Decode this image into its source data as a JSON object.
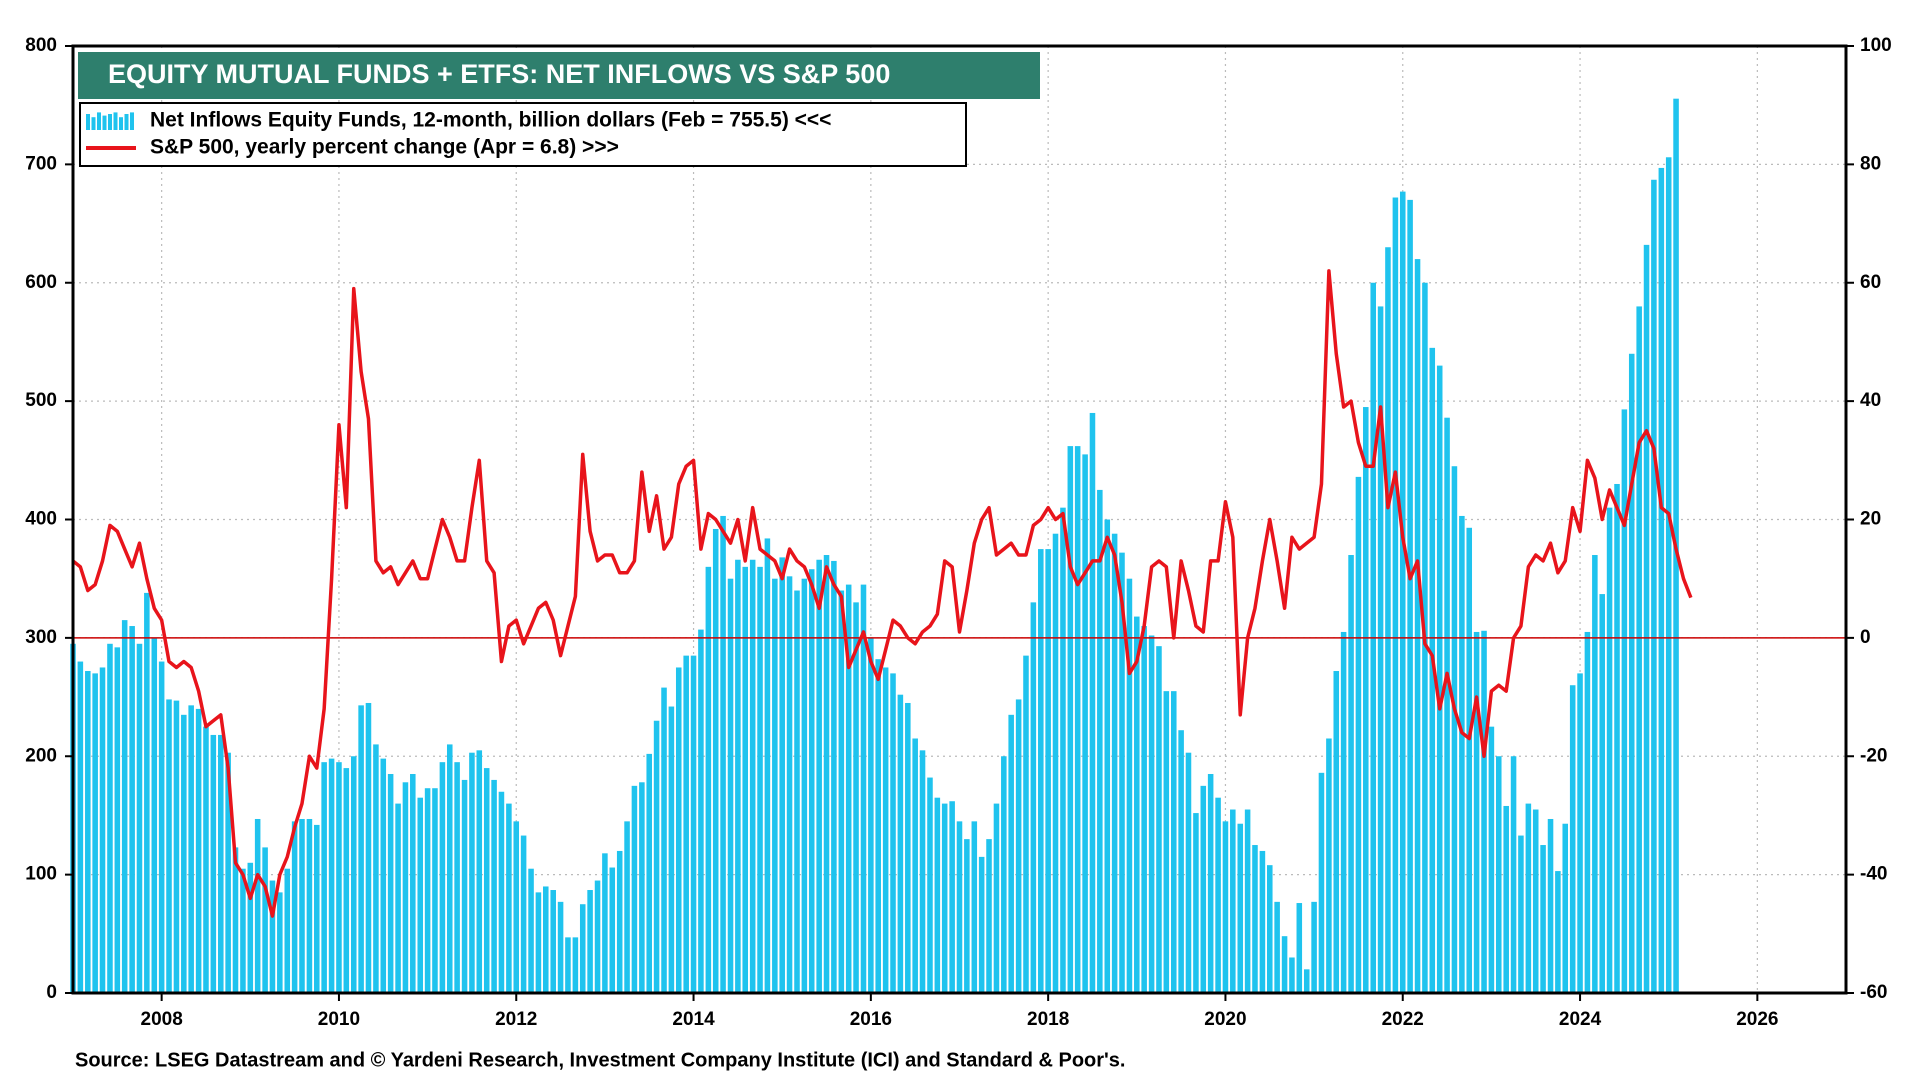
{
  "chart_data": {
    "type": "bar_line",
    "title": "EQUITY MUTUAL FUNDS + ETFS: NET INFLOWS VS S&P 500",
    "source": "Source: LSEG Datastream and © Yardeni Research, Investment Company Institute (ICI) and Standard & Poor's.",
    "legend": "upper left",
    "grid": true,
    "xlim": [
      2007,
      2027
    ],
    "xticks": [
      2008,
      2010,
      2012,
      2014,
      2016,
      2018,
      2020,
      2022,
      2024,
      2026
    ],
    "ylim": [
      0,
      800
    ],
    "yticks": [
      0,
      100,
      200,
      300,
      400,
      500,
      600,
      700,
      800
    ],
    "y2lim": [
      -60,
      100
    ],
    "y2ticks": [
      -60,
      -40,
      -20,
      0,
      20,
      40,
      60,
      80,
      100
    ],
    "hline": {
      "axis": "y2",
      "value": 0,
      "color": "#cc0000"
    },
    "x": [
      2007,
      2007.083,
      2007.167,
      2007.25,
      2007.333,
      2007.417,
      2007.5,
      2007.583,
      2007.667,
      2007.75,
      2007.833,
      2007.917,
      2008,
      2008.083,
      2008.167,
      2008.25,
      2008.333,
      2008.417,
      2008.5,
      2008.583,
      2008.667,
      2008.75,
      2008.833,
      2008.917,
      2009,
      2009.083,
      2009.167,
      2009.25,
      2009.333,
      2009.417,
      2009.5,
      2009.583,
      2009.667,
      2009.75,
      2009.833,
      2009.917,
      2010,
      2010.083,
      2010.167,
      2010.25,
      2010.333,
      2010.417,
      2010.5,
      2010.583,
      2010.667,
      2010.75,
      2010.833,
      2010.917,
      2011,
      2011.083,
      2011.167,
      2011.25,
      2011.333,
      2011.417,
      2011.5,
      2011.583,
      2011.667,
      2011.75,
      2011.833,
      2011.917,
      2012,
      2012.083,
      2012.167,
      2012.25,
      2012.333,
      2012.417,
      2012.5,
      2012.583,
      2012.667,
      2012.75,
      2012.833,
      2012.917,
      2013,
      2013.083,
      2013.167,
      2013.25,
      2013.333,
      2013.417,
      2013.5,
      2013.583,
      2013.667,
      2013.75,
      2013.833,
      2013.917,
      2014,
      2014.083,
      2014.167,
      2014.25,
      2014.333,
      2014.417,
      2014.5,
      2014.583,
      2014.667,
      2014.75,
      2014.833,
      2014.917,
      2015,
      2015.083,
      2015.167,
      2015.25,
      2015.333,
      2015.417,
      2015.5,
      2015.583,
      2015.667,
      2015.75,
      2015.833,
      2015.917,
      2016,
      2016.083,
      2016.167,
      2016.25,
      2016.333,
      2016.417,
      2016.5,
      2016.583,
      2016.667,
      2016.75,
      2016.833,
      2016.917,
      2017,
      2017.083,
      2017.167,
      2017.25,
      2017.333,
      2017.417,
      2017.5,
      2017.583,
      2017.667,
      2017.75,
      2017.833,
      2017.917,
      2018,
      2018.083,
      2018.167,
      2018.25,
      2018.333,
      2018.417,
      2018.5,
      2018.583,
      2018.667,
      2018.75,
      2018.833,
      2018.917,
      2019,
      2019.083,
      2019.167,
      2019.25,
      2019.333,
      2019.417,
      2019.5,
      2019.583,
      2019.667,
      2019.75,
      2019.833,
      2019.917,
      2020,
      2020.083,
      2020.167,
      2020.25,
      2020.333,
      2020.417,
      2020.5,
      2020.583,
      2020.667,
      2020.75,
      2020.833,
      2020.917,
      2021,
      2021.083,
      2021.167,
      2021.25,
      2021.333,
      2021.417,
      2021.5,
      2021.583,
      2021.667,
      2021.75,
      2021.833,
      2021.917,
      2022,
      2022.083,
      2022.167,
      2022.25,
      2022.333,
      2022.417,
      2022.5,
      2022.583,
      2022.667,
      2022.75,
      2022.833,
      2022.917,
      2023,
      2023.083,
      2023.167,
      2023.25,
      2023.333,
      2023.417,
      2023.5,
      2023.583,
      2023.667,
      2023.75,
      2023.833,
      2023.917,
      2024,
      2024.083,
      2024.167,
      2024.25,
      2024.333,
      2024.417,
      2024.5,
      2024.583,
      2024.667,
      2024.75,
      2024.833,
      2024.917,
      2025,
      2025.083,
      2025.167,
      2025.25
    ],
    "series": [
      {
        "name": "Net Inflows Equity Funds, 12-month, billion dollars (Feb = 755.5) <<<",
        "type": "bar",
        "color": "#1fc3ee",
        "values": [
          295,
          280,
          272,
          270,
          275,
          295,
          292,
          315,
          310,
          295,
          338,
          300,
          280,
          248,
          247,
          235,
          243,
          240,
          225,
          218,
          218,
          203,
          123,
          105,
          110,
          147,
          123,
          95,
          85,
          105,
          145,
          147,
          147,
          142,
          195,
          198,
          195,
          190,
          200,
          243,
          245,
          210,
          198,
          185,
          160,
          178,
          185,
          165,
          173,
          173,
          195,
          210,
          195,
          180,
          203,
          205,
          190,
          180,
          170,
          160,
          145,
          133,
          105,
          85,
          90,
          87,
          77,
          47,
          47,
          75,
          87,
          95,
          118,
          106,
          120,
          145,
          175,
          178,
          202,
          230,
          258,
          242,
          275,
          285,
          285,
          307,
          360,
          392,
          403,
          350,
          366,
          360,
          366,
          360,
          384,
          350,
          368,
          352,
          340,
          350,
          358,
          366,
          370,
          365,
          340,
          345,
          330,
          345,
          300,
          282,
          275,
          270,
          252,
          245,
          215,
          205,
          182,
          165,
          160,
          162,
          145,
          130,
          145,
          115,
          130,
          160,
          200,
          235,
          248,
          285,
          330,
          375,
          375,
          388,
          410,
          462,
          462,
          455,
          490,
          425,
          400,
          388,
          372,
          350,
          318,
          310,
          302,
          293,
          255,
          255,
          222,
          203,
          152,
          175,
          185,
          165,
          145,
          155,
          143,
          155,
          125,
          120,
          108,
          77,
          48,
          30,
          76,
          20,
          77,
          186,
          215,
          272,
          305,
          370,
          436,
          495,
          600,
          580,
          630,
          672,
          677,
          670,
          620,
          600,
          545,
          530,
          486,
          445,
          403,
          393,
          305,
          306,
          225,
          200,
          158,
          200,
          133,
          160,
          155,
          125,
          147,
          103,
          143,
          260,
          270,
          305,
          370,
          337,
          410,
          430,
          493,
          540,
          580,
          632,
          687,
          697,
          706,
          755.5,
          null,
          null
        ]
      },
      {
        "name": "S&P 500, yearly percent change (Apr = 6.8) >>>",
        "type": "line",
        "axis": "y2",
        "color": "#e8141b",
        "values": [
          13,
          12,
          8,
          9,
          13,
          19,
          18,
          15,
          12,
          16,
          10,
          5,
          3,
          -4,
          -5,
          -4,
          -5,
          -9,
          -15,
          -14,
          -13,
          -22,
          -38,
          -40,
          -44,
          -40,
          -42,
          -47,
          -40,
          -37,
          -32,
          -28,
          -20,
          -22,
          -12,
          10,
          36,
          22,
          59,
          45,
          37,
          13,
          11,
          12,
          9,
          11,
          13,
          10,
          10,
          15,
          20,
          17,
          13,
          13,
          22,
          30,
          13,
          11,
          -4,
          2,
          3,
          -1,
          2,
          5,
          6,
          3,
          -3,
          2,
          7,
          31,
          18,
          13,
          14,
          14,
          11,
          11,
          13,
          28,
          18,
          24,
          15,
          17,
          26,
          29,
          30,
          15,
          21,
          20,
          18,
          16,
          20,
          13,
          22,
          15,
          14,
          13,
          10,
          15,
          13,
          12,
          9,
          5,
          12,
          9,
          7,
          -5,
          -2,
          1,
          -4,
          -7,
          -2,
          3,
          2,
          0,
          -1,
          1,
          2,
          4,
          13,
          12,
          1,
          8,
          16,
          20,
          22,
          14,
          15,
          16,
          14,
          14,
          19,
          20,
          22,
          20,
          21,
          12,
          9,
          11,
          13,
          13,
          17,
          14,
          6,
          -6,
          -4,
          2,
          12,
          13,
          12,
          0,
          13,
          8,
          2,
          1,
          13,
          13,
          23,
          17,
          -13,
          0,
          5,
          13,
          20,
          13,
          5,
          17,
          15,
          16,
          17,
          26,
          62,
          48,
          39,
          40,
          33,
          29,
          29,
          39,
          22,
          28,
          17,
          10,
          13,
          -1,
          -3,
          -12,
          -6,
          -12,
          -16,
          -17,
          -10,
          -20,
          -9,
          -8,
          -9,
          0,
          2,
          12,
          14,
          13,
          16,
          11,
          13,
          22,
          18,
          30,
          27,
          20,
          25,
          22,
          19,
          26,
          33,
          35,
          32,
          22,
          21,
          15,
          10,
          6.8
        ]
      }
    ]
  }
}
